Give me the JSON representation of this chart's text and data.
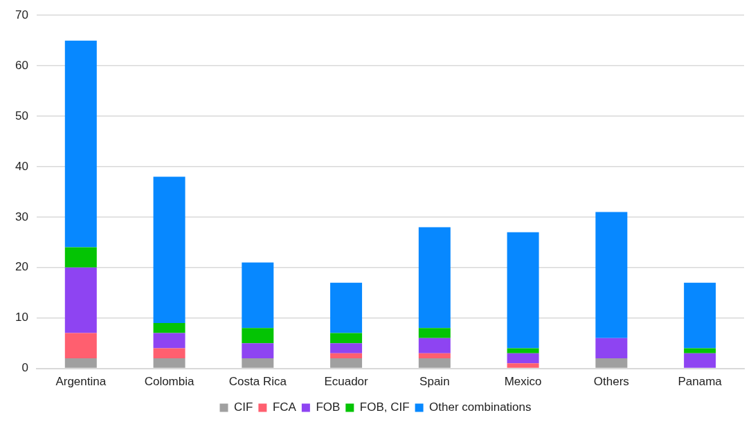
{
  "chart_data": {
    "type": "bar",
    "stacked": true,
    "categories": [
      "Argentina",
      "Colombia",
      "Costa Rica",
      "Ecuador",
      "Spain",
      "Mexico",
      "Others",
      "Panama"
    ],
    "series": [
      {
        "name": "CIF",
        "color": "#a0a0a0",
        "values": [
          2,
          2,
          2,
          2,
          2,
          0,
          2,
          0
        ]
      },
      {
        "name": "FCA",
        "color": "#ff5f6f",
        "values": [
          5,
          2,
          0,
          1,
          1,
          1,
          0,
          0
        ]
      },
      {
        "name": "FOB",
        "color": "#8e44f2",
        "values": [
          13,
          3,
          3,
          2,
          3,
          2,
          4,
          3
        ]
      },
      {
        "name": "FOB, CIF",
        "color": "#04c404",
        "values": [
          4,
          2,
          3,
          2,
          2,
          1,
          0,
          1
        ]
      },
      {
        "name": "Other combinations",
        "color": "#0788ff",
        "values": [
          41,
          29,
          13,
          10,
          20,
          23,
          25,
          13
        ]
      }
    ],
    "ylim": [
      0,
      70
    ],
    "yticks": [
      0,
      10,
      20,
      30,
      40,
      50,
      60,
      70
    ],
    "grid": "y",
    "legend": "bottom"
  }
}
